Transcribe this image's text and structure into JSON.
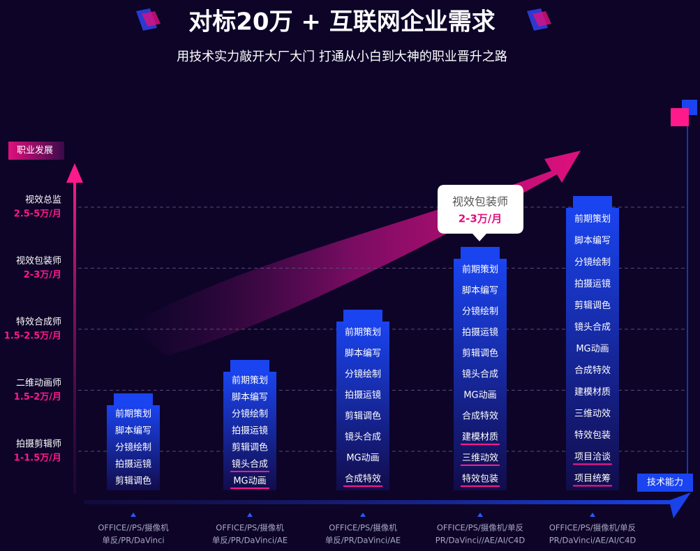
{
  "header": {
    "title": "对标20万 + 互联网企业需求",
    "subtitle": "用技术实力敲开大厂大门  打通从小白到大神的职业晋升之路"
  },
  "y_axis_label": "职业发展",
  "x_axis_label": "技术能力",
  "levels": [
    {
      "title": "视效总监",
      "salary": "2.5-5万/月"
    },
    {
      "title": "视效包装师",
      "salary": "2-3万/月"
    },
    {
      "title": "特效合成师",
      "salary": "1.5-2.5万/月"
    },
    {
      "title": "二维动画师",
      "salary": "1.5-2万/月"
    },
    {
      "title": "拍摄剪辑师",
      "salary": "1-1.5万/月"
    }
  ],
  "callout": {
    "title": "视效包装师",
    "salary": "2-3万/月"
  },
  "columns": [
    {
      "skills": [
        {
          "text": "前期策划"
        },
        {
          "text": "脚本编写"
        },
        {
          "text": "分镜绘制"
        },
        {
          "text": "拍摄运镜"
        },
        {
          "text": "剪辑调色"
        }
      ],
      "tools": [
        "OFFICE//PS/摄像机",
        "单反/PR/DaVinci"
      ]
    },
    {
      "skills": [
        {
          "text": "前期策划"
        },
        {
          "text": "脚本编写"
        },
        {
          "text": "分镜绘制"
        },
        {
          "text": "拍摄运镜"
        },
        {
          "text": "剪辑调色"
        },
        {
          "text": "镜头合成",
          "new": true
        },
        {
          "text": "MG动画",
          "new": true
        }
      ],
      "tools": [
        "OFFICE/PS/摄像机",
        "单反/PR/DaVinci/AE"
      ]
    },
    {
      "skills": [
        {
          "text": "前期策划"
        },
        {
          "text": "脚本编写"
        },
        {
          "text": "分镜绘制"
        },
        {
          "text": "拍摄运镜"
        },
        {
          "text": "剪辑调色"
        },
        {
          "text": "镜头合成"
        },
        {
          "text": "MG动画"
        },
        {
          "text": "合成特效",
          "new": true
        }
      ],
      "tools": [
        "OFFICE/PS/摄像机",
        "单反/PR/DaVinci/AE"
      ]
    },
    {
      "skills": [
        {
          "text": "前期策划"
        },
        {
          "text": "脚本编写"
        },
        {
          "text": "分镜绘制"
        },
        {
          "text": "拍摄运镜"
        },
        {
          "text": "剪辑调色"
        },
        {
          "text": "镜头合成"
        },
        {
          "text": "MG动画"
        },
        {
          "text": "合成特效"
        },
        {
          "text": "建模材质",
          "new": true
        },
        {
          "text": "三维动效",
          "new": true
        },
        {
          "text": "特效包装",
          "new": true
        }
      ],
      "tools": [
        "OFFICE/PS/摄像机/单反",
        "PR/DaVinci//AE/AI/C4D"
      ]
    },
    {
      "skills": [
        {
          "text": "前期策划"
        },
        {
          "text": "脚本编写"
        },
        {
          "text": "分镜绘制"
        },
        {
          "text": "拍摄运镜"
        },
        {
          "text": "剪辑调色"
        },
        {
          "text": "镜头合成"
        },
        {
          "text": "MG动画"
        },
        {
          "text": "合成特效"
        },
        {
          "text": "建模材质"
        },
        {
          "text": "三维动效"
        },
        {
          "text": "特效包装"
        },
        {
          "text": "项目洽谈",
          "new": true
        },
        {
          "text": "项目统筹",
          "new": true
        }
      ],
      "tools": [
        "OFFICE/PS/摄像机/单反",
        "PR/DaVinci/AE/AI/C4D"
      ]
    }
  ]
}
